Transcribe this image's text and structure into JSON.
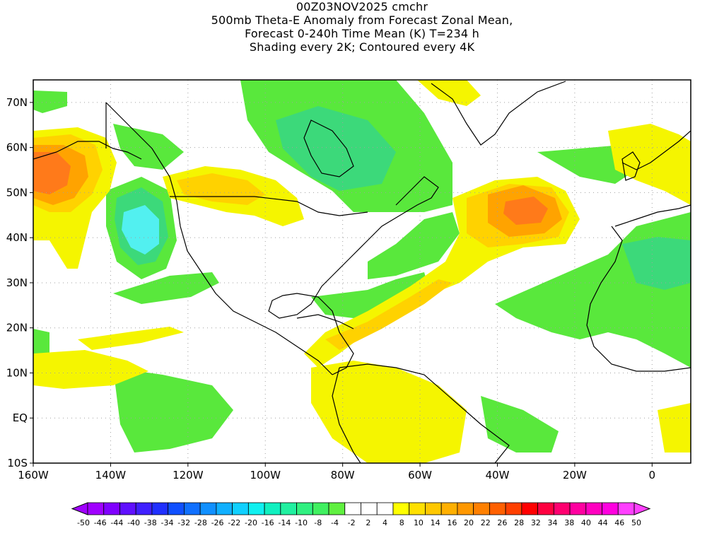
{
  "title": {
    "line1": "00Z03NOV2025 cmchr",
    "line2": "500mb Theta-E Anomaly from Forecast Zonal Mean,",
    "line3": "Forecast 0-240h Time Mean (K) T=234 h",
    "line4": "Shading every 2K; Contoured every 4K"
  },
  "axes": {
    "lon_labels": [
      "160W",
      "140W",
      "120W",
      "100W",
      "80W",
      "60W",
      "40W",
      "20W",
      "0"
    ],
    "lon_values": [
      -160,
      -140,
      -120,
      -100,
      -80,
      -60,
      -40,
      -20,
      0
    ],
    "lat_labels": [
      "70N",
      "60N",
      "50N",
      "40N",
      "30N",
      "20N",
      "10N",
      "EQ",
      "10S"
    ],
    "lat_values": [
      70,
      60,
      50,
      40,
      30,
      20,
      10,
      0,
      -10
    ],
    "lon_range": [
      -160,
      10
    ],
    "lat_range": [
      -10,
      75
    ]
  },
  "colorbar": {
    "labels": [
      "-50",
      "-46",
      "-44",
      "-40",
      "-38",
      "-34",
      "-32",
      "-28",
      "-26",
      "-22",
      "-20",
      "-16",
      "-14",
      "-10",
      "-8",
      "-4",
      "-2",
      "2",
      "4",
      "8",
      "10",
      "14",
      "16",
      "20",
      "22",
      "26",
      "28",
      "32",
      "34",
      "38",
      "40",
      "44",
      "46",
      "50"
    ],
    "colors": [
      "#a000ff",
      "#8000ff",
      "#6010ff",
      "#4020ff",
      "#2030ff",
      "#1050ff",
      "#1070ff",
      "#1090ff",
      "#10b0ff",
      "#10d0ff",
      "#10f0f0",
      "#10f0c0",
      "#20f0a0",
      "#30f080",
      "#40f060",
      "#60f040",
      "#ffffff",
      "#ffffff",
      "#ffffff",
      "#ffff00",
      "#ffe000",
      "#ffc800",
      "#ffb000",
      "#ff9800",
      "#ff8000",
      "#ff6000",
      "#ff4000",
      "#ff0000",
      "#ff0040",
      "#ff0070",
      "#ff00a0",
      "#ff00c0",
      "#ff00e0",
      "#ff40ff"
    ]
  },
  "colors": {
    "frame": "#000000",
    "coast": "#000000",
    "grid": "#a0a0a0",
    "green": "#59e83c",
    "light_green": "#3cd97a",
    "teal": "#3ce8c8",
    "cyan": "#52f0f0",
    "yellow": "#f5f500",
    "gold": "#ffd200",
    "orange": "#ffa300",
    "orange_red": "#ff7a1a"
  }
}
